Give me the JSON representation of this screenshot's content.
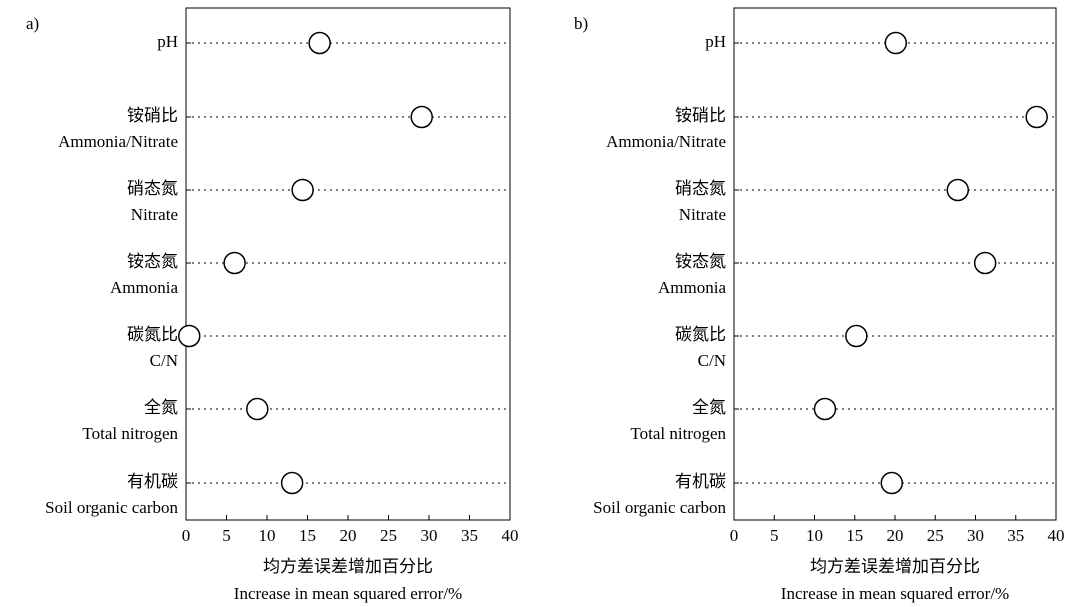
{
  "chart_data": [
    {
      "type": "dot",
      "panel": "a)",
      "categories": [
        [
          "pH"
        ],
        [
          "铵硝比",
          "Ammonia/Nitrate"
        ],
        [
          "硝态氮",
          "Nitrate"
        ],
        [
          "铵态氮",
          "Ammonia"
        ],
        [
          "碳氮比",
          "C/N"
        ],
        [
          "全氮",
          "Total nitrogen"
        ],
        [
          "有机碳",
          "Soil organic carbon"
        ]
      ],
      "values": [
        16.5,
        29.1,
        14.4,
        6.0,
        0.4,
        8.8,
        13.1
      ],
      "xlim": [
        0,
        40
      ],
      "xticks": [
        0,
        5,
        10,
        15,
        20,
        25,
        30,
        35,
        40
      ],
      "xlabel": [
        "均方差误差增加百分比",
        "Increase in mean squared error/%"
      ]
    },
    {
      "type": "dot",
      "panel": "b)",
      "categories": [
        [
          "pH"
        ],
        [
          "铵硝比",
          "Ammonia/Nitrate"
        ],
        [
          "硝态氮",
          "Nitrate"
        ],
        [
          "铵态氮",
          "Ammonia"
        ],
        [
          "碳氮比",
          "C/N"
        ],
        [
          "全氮",
          "Total nitrogen"
        ],
        [
          "有机碳",
          "Soil organic carbon"
        ]
      ],
      "values": [
        20.1,
        37.6,
        27.8,
        31.2,
        15.2,
        11.3,
        19.6
      ],
      "xlim": [
        0,
        40
      ],
      "xticks": [
        0,
        5,
        10,
        15,
        20,
        25,
        30,
        35,
        40
      ],
      "xlabel": [
        "均方差误差增加百分比",
        "Increase in mean squared error/%"
      ]
    }
  ]
}
